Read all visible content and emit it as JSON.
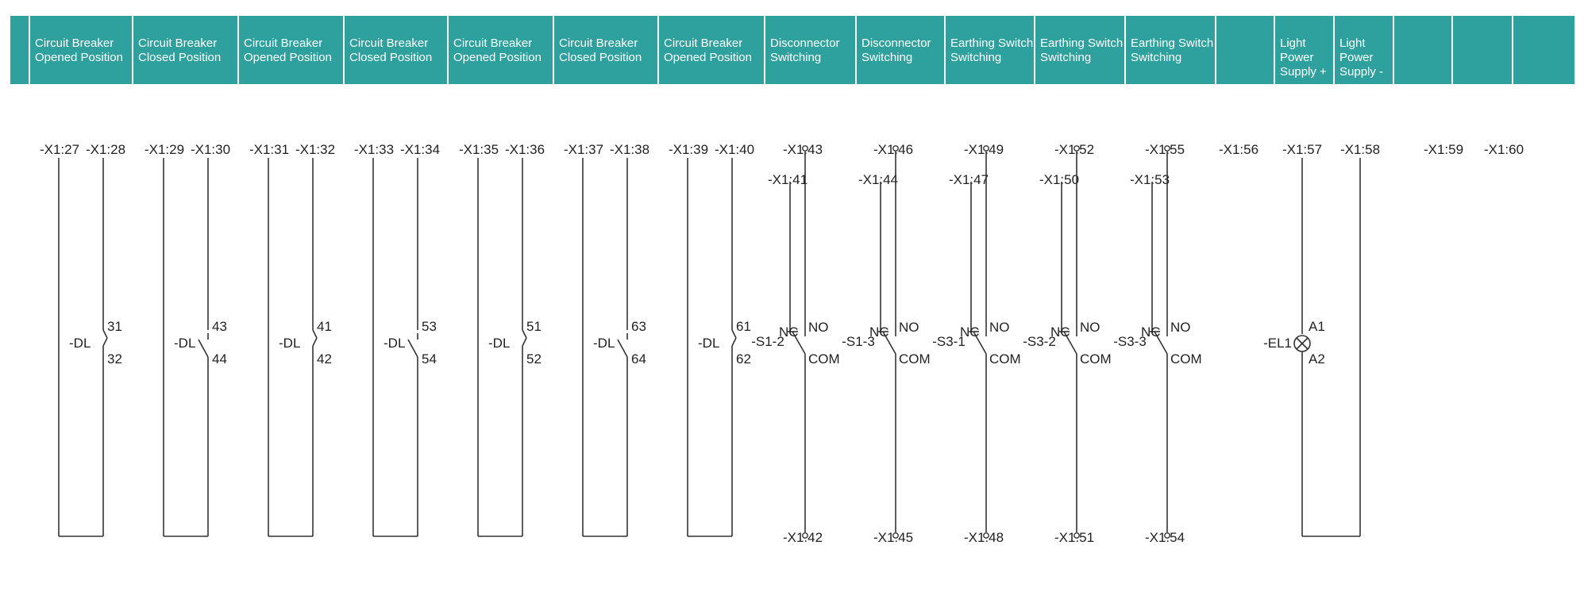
{
  "header": {
    "columns": [
      {
        "lines": [
          "Circuit Breaker",
          "Opened Position"
        ]
      },
      {
        "lines": [
          "Circuit Breaker",
          "Closed Position"
        ]
      },
      {
        "lines": [
          "Circuit Breaker",
          "Opened Position"
        ]
      },
      {
        "lines": [
          "Circuit Breaker",
          "Closed Position"
        ]
      },
      {
        "lines": [
          "Circuit Breaker",
          "Opened Position"
        ]
      },
      {
        "lines": [
          "Circuit Breaker",
          "Closed Position"
        ]
      },
      {
        "lines": [
          "Circuit Breaker",
          "Opened Position"
        ]
      },
      {
        "lines": [
          "Disconnector",
          "Switching"
        ]
      },
      {
        "lines": [
          "Disconnector",
          "Switching"
        ]
      },
      {
        "lines": [
          "Earthing Switch",
          "Switching"
        ]
      },
      {
        "lines": [
          "Earthing Switch",
          "Switching"
        ]
      },
      {
        "lines": [
          "Earthing Switch",
          "Switching"
        ]
      },
      {
        "lines": []
      },
      {
        "lines": [
          "Light",
          "Power",
          "Supply +"
        ]
      },
      {
        "lines": [
          "Light",
          "Power",
          "Supply -"
        ]
      },
      {
        "lines": []
      },
      {
        "lines": []
      },
      {
        "lines": []
      }
    ]
  },
  "breaker_contacts": [
    {
      "left_terminal": "-X1:27",
      "right_terminal": "-X1:28",
      "device": "-DL",
      "pin_top": "31",
      "pin_bottom": "32",
      "state": "closed"
    },
    {
      "left_terminal": "-X1:29",
      "right_terminal": "-X1:30",
      "device": "-DL",
      "pin_top": "43",
      "pin_bottom": "44",
      "state": "open"
    },
    {
      "left_terminal": "-X1:31",
      "right_terminal": "-X1:32",
      "device": "-DL",
      "pin_top": "41",
      "pin_bottom": "42",
      "state": "closed"
    },
    {
      "left_terminal": "-X1:33",
      "right_terminal": "-X1:34",
      "device": "-DL",
      "pin_top": "53",
      "pin_bottom": "54",
      "state": "open"
    },
    {
      "left_terminal": "-X1:35",
      "right_terminal": "-X1:36",
      "device": "-DL",
      "pin_top": "51",
      "pin_bottom": "52",
      "state": "closed"
    },
    {
      "left_terminal": "-X1:37",
      "right_terminal": "-X1:38",
      "device": "-DL",
      "pin_top": "63",
      "pin_bottom": "64",
      "state": "open"
    },
    {
      "left_terminal": "-X1:39",
      "right_terminal": "-X1:40",
      "device": "-DL",
      "pin_top": "61",
      "pin_bottom": "62",
      "state": "closed"
    }
  ],
  "changeover_switches": [
    {
      "no_terminal": "-X1:43",
      "nc_terminal": "-X1:41",
      "com_terminal": "-X1:42",
      "device": "-S1-2",
      "nc_label": "NC",
      "no_label": "NO",
      "com_label": "COM"
    },
    {
      "no_terminal": "-X1:46",
      "nc_terminal": "-X1:44",
      "com_terminal": "-X1:45",
      "device": "-S1-3",
      "nc_label": "NC",
      "no_label": "NO",
      "com_label": "COM"
    },
    {
      "no_terminal": "-X1:49",
      "nc_terminal": "-X1:47",
      "com_terminal": "-X1:48",
      "device": "-S3-1",
      "nc_label": "NC",
      "no_label": "NO",
      "com_label": "COM"
    },
    {
      "no_terminal": "-X1:52",
      "nc_terminal": "-X1:50",
      "com_terminal": "-X1:51",
      "device": "-S3-2",
      "nc_label": "NC",
      "no_label": "NO",
      "com_label": "COM"
    },
    {
      "no_terminal": "-X1:55",
      "nc_terminal": "-X1:53",
      "com_terminal": "-X1:54",
      "device": "-S3-3",
      "nc_label": "NC",
      "no_label": "NO",
      "com_label": "COM"
    }
  ],
  "spare_terminals": [
    "-X1:56",
    "-X1:59",
    "-X1:60"
  ],
  "lamp": {
    "device": "-EL1",
    "pin_top": "A1",
    "pin_bottom": "A2",
    "plus_terminal": "-X1:57",
    "minus_terminal": "-X1:58"
  },
  "colors": {
    "header_bg": "#2ea19e",
    "header_text": "#ffffff",
    "line": "#333333",
    "text": "#222222"
  }
}
